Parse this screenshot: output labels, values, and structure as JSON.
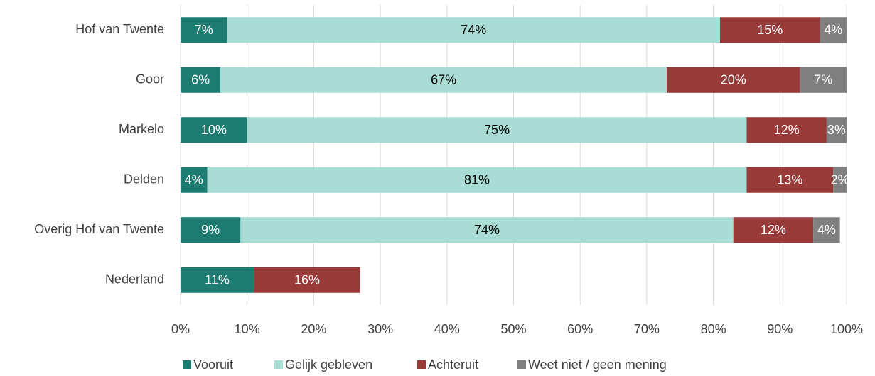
{
  "chart_data": {
    "type": "stacked-barh",
    "categories": [
      "Hof van Twente",
      "Goor",
      "Markelo",
      "Delden",
      "Overig Hof van Twente",
      "Nederland"
    ],
    "series": [
      {
        "name": "Vooruit",
        "color": "#1e7b72",
        "values": [
          7,
          6,
          10,
          4,
          9,
          11
        ],
        "value_labels": [
          "7%",
          "6%",
          "10%",
          "4%",
          "9%",
          "11%"
        ]
      },
      {
        "name": "Gelijk gebleven",
        "color": "#a8dcd5",
        "values": [
          74,
          67,
          75,
          81,
          74,
          null
        ],
        "value_labels": [
          "74%",
          "67%",
          "75%",
          "81%",
          "74%",
          null
        ]
      },
      {
        "name": "Achteruit",
        "color": "#983a38",
        "values": [
          15,
          20,
          12,
          13,
          12,
          16
        ],
        "value_labels": [
          "15%",
          "20%",
          "12%",
          "13%",
          "12%",
          "16%"
        ]
      },
      {
        "name": "Weet niet / geen mening",
        "color": "#808080",
        "values": [
          4,
          7,
          3,
          2,
          4,
          null
        ],
        "value_labels": [
          "4%",
          "7%",
          "3%",
          "2%",
          "4%",
          null
        ]
      }
    ],
    "xlim": [
      0,
      100
    ],
    "xticks": [
      {
        "value": 0,
        "label": "0%"
      },
      {
        "value": 10,
        "label": "10%"
      },
      {
        "value": 20,
        "label": "20%"
      },
      {
        "value": 30,
        "label": "30%"
      },
      {
        "value": 40,
        "label": "40%"
      },
      {
        "value": 50,
        "label": "50%"
      },
      {
        "value": 60,
        "label": "60%"
      },
      {
        "value": 70,
        "label": "70%"
      },
      {
        "value": 80,
        "label": "80%"
      },
      {
        "value": 90,
        "label": "90%"
      },
      {
        "value": 100,
        "label": "100%"
      }
    ],
    "grid": true,
    "legend": "bottom"
  }
}
